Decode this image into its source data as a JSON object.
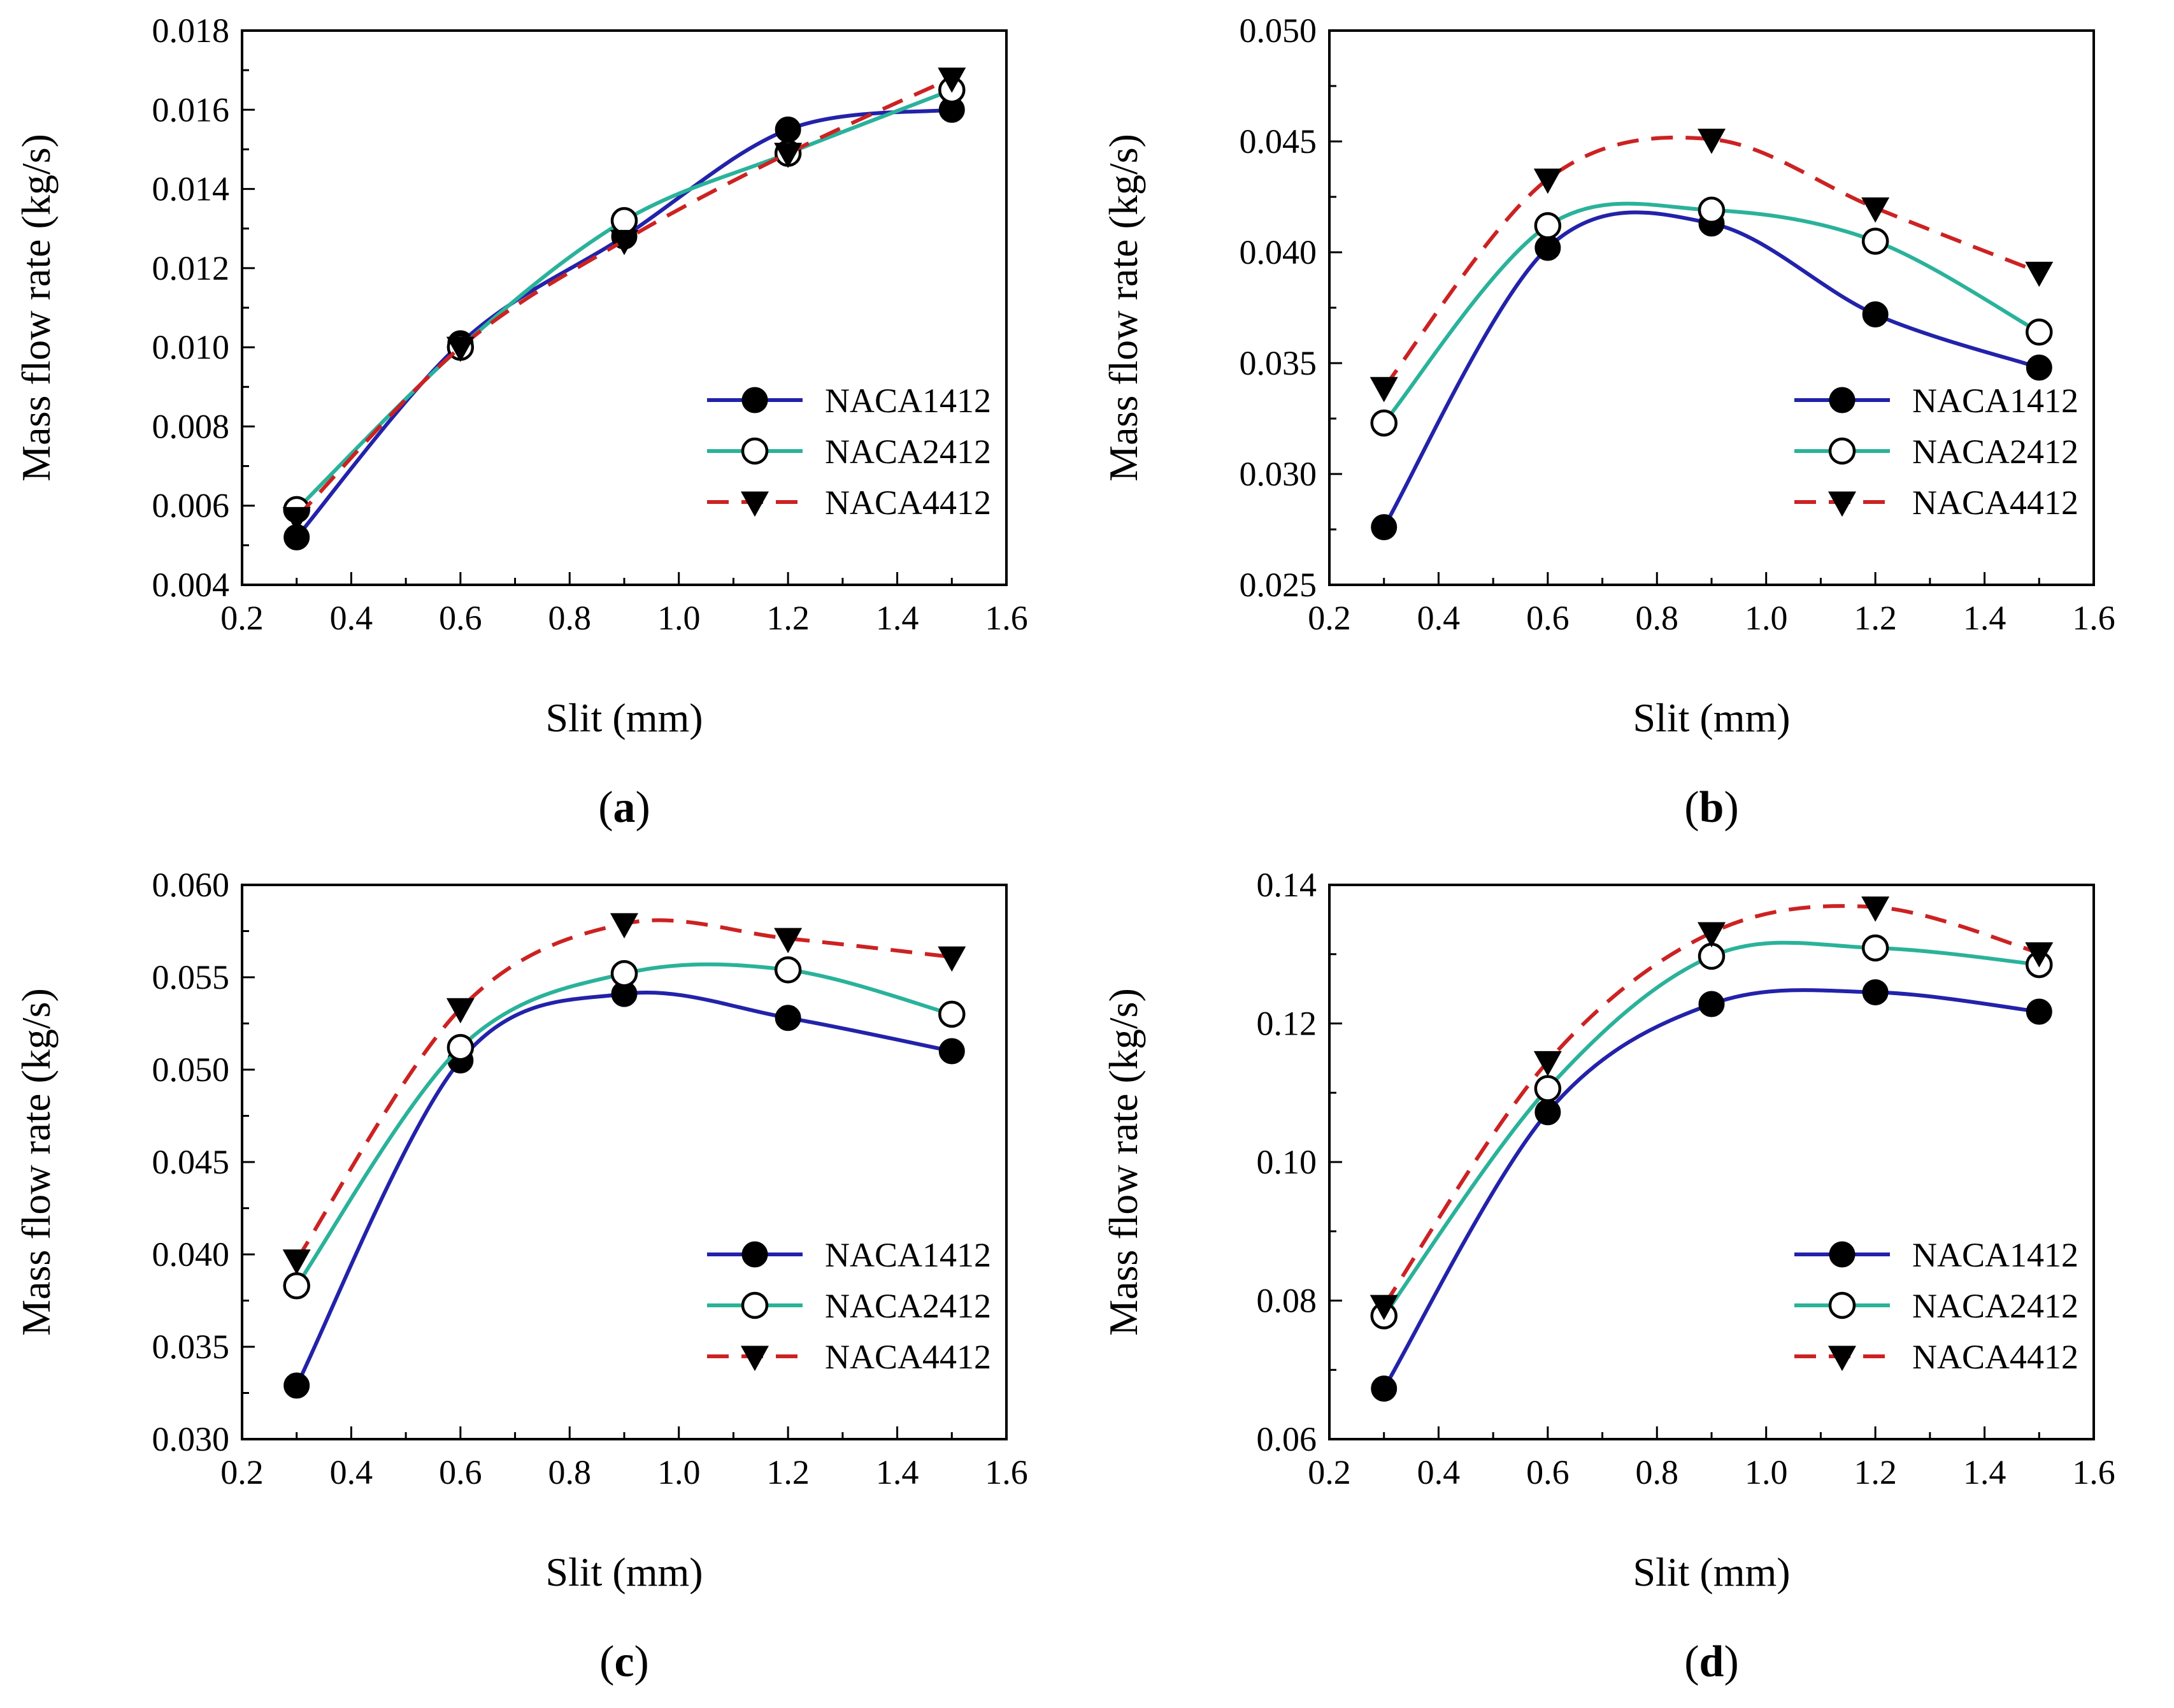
{
  "chart_data": [
    {
      "type": "line",
      "caption_letter": "a",
      "xlabel": "Slit (mm)",
      "ylabel": "Mass flow rate (kg/s)",
      "xlim": [
        0.2,
        1.6
      ],
      "ylim": [
        0.004,
        0.018
      ],
      "xticks": [
        "0.2",
        "0.4",
        "0.6",
        "0.8",
        "1.0",
        "1.2",
        "1.4",
        "1.6"
      ],
      "yticks": [
        "0.004",
        "0.006",
        "0.008",
        "0.010",
        "0.012",
        "0.014",
        "0.016",
        "0.018"
      ],
      "legend_position": "lower-right",
      "x": [
        0.3,
        0.6,
        0.9,
        1.2,
        1.5
      ],
      "series": [
        {
          "name": "NACA1412",
          "values": [
            0.0052,
            0.0101,
            0.0128,
            0.0155,
            0.016
          ],
          "color": "#2222aa",
          "marker": "filled-circle",
          "dash": "solid"
        },
        {
          "name": "NACA2412",
          "values": [
            0.0059,
            0.01,
            0.0132,
            0.0149,
            0.0165
          ],
          "color": "#2ab29a",
          "marker": "open-circle",
          "dash": "solid"
        },
        {
          "name": "NACA4412",
          "values": [
            0.0057,
            0.01,
            0.0127,
            0.0149,
            0.0168
          ],
          "color": "#cc2222",
          "marker": "down-triangle",
          "dash": "dashed"
        }
      ]
    },
    {
      "type": "line",
      "caption_letter": "b",
      "xlabel": "Slit (mm)",
      "ylabel": "Mass flow rate (kg/s)",
      "xlim": [
        0.2,
        1.6
      ],
      "ylim": [
        0.025,
        0.05
      ],
      "xticks": [
        "0.2",
        "0.4",
        "0.6",
        "0.8",
        "1.0",
        "1.2",
        "1.4",
        "1.6"
      ],
      "yticks": [
        "0.025",
        "0.030",
        "0.035",
        "0.040",
        "0.045",
        "0.050"
      ],
      "legend_position": "lower-right",
      "x": [
        0.3,
        0.6,
        0.9,
        1.2,
        1.5
      ],
      "series": [
        {
          "name": "NACA1412",
          "values": [
            0.0276,
            0.0402,
            0.0413,
            0.0372,
            0.0348
          ],
          "color": "#2222aa",
          "marker": "filled-circle",
          "dash": "solid"
        },
        {
          "name": "NACA2412",
          "values": [
            0.0323,
            0.0412,
            0.0419,
            0.0405,
            0.0364
          ],
          "color": "#2ab29a",
          "marker": "open-circle",
          "dash": "solid"
        },
        {
          "name": "NACA4412",
          "values": [
            0.0339,
            0.0433,
            0.0451,
            0.042,
            0.0391
          ],
          "color": "#cc2222",
          "marker": "down-triangle",
          "dash": "dashed"
        }
      ]
    },
    {
      "type": "line",
      "caption_letter": "c",
      "xlabel": "Slit (mm)",
      "ylabel": "Mass flow rate (kg/s)",
      "xlim": [
        0.2,
        1.6
      ],
      "ylim": [
        0.03,
        0.06
      ],
      "xticks": [
        "0.2",
        "0.4",
        "0.6",
        "0.8",
        "1.0",
        "1.2",
        "1.4",
        "1.6"
      ],
      "yticks": [
        "0.030",
        "0.035",
        "0.040",
        "0.045",
        "0.050",
        "0.055",
        "0.060"
      ],
      "legend_position": "lower-right",
      "x": [
        0.3,
        0.6,
        0.9,
        1.2,
        1.5
      ],
      "series": [
        {
          "name": "NACA1412",
          "values": [
            0.0329,
            0.0505,
            0.0541,
            0.0528,
            0.051
          ],
          "color": "#2222aa",
          "marker": "filled-circle",
          "dash": "solid"
        },
        {
          "name": "NACA2412",
          "values": [
            0.0383,
            0.0512,
            0.0552,
            0.0554,
            0.053
          ],
          "color": "#2ab29a",
          "marker": "open-circle",
          "dash": "solid"
        },
        {
          "name": "NACA4412",
          "values": [
            0.0397,
            0.0533,
            0.0579,
            0.0571,
            0.0561
          ],
          "color": "#cc2222",
          "marker": "down-triangle",
          "dash": "dashed"
        }
      ]
    },
    {
      "type": "line",
      "caption_letter": "d",
      "xlabel": "Slit (mm)",
      "ylabel": "Mass flow rate (kg/s)",
      "xlim": [
        0.2,
        1.6
      ],
      "ylim": [
        0.06,
        0.14
      ],
      "xticks": [
        "0.2",
        "0.4",
        "0.6",
        "0.8",
        "1.0",
        "1.2",
        "1.4",
        "1.6"
      ],
      "yticks": [
        "0.06",
        "0.08",
        "0.10",
        "0.12",
        "0.14"
      ],
      "legend_position": "lower-right",
      "x": [
        0.3,
        0.6,
        0.9,
        1.2,
        1.5
      ],
      "series": [
        {
          "name": "NACA1412",
          "values": [
            0.0673,
            0.1072,
            0.1228,
            0.1245,
            0.1217
          ],
          "color": "#2222aa",
          "marker": "filled-circle",
          "dash": "solid"
        },
        {
          "name": "NACA2412",
          "values": [
            0.0778,
            0.1106,
            0.1297,
            0.1309,
            0.1285
          ],
          "color": "#2ab29a",
          "marker": "open-circle",
          "dash": "solid"
        },
        {
          "name": "NACA4412",
          "values": [
            0.0793,
            0.1145,
            0.1331,
            0.1368,
            0.1302
          ],
          "color": "#cc2222",
          "marker": "down-triangle",
          "dash": "dashed"
        }
      ]
    }
  ]
}
